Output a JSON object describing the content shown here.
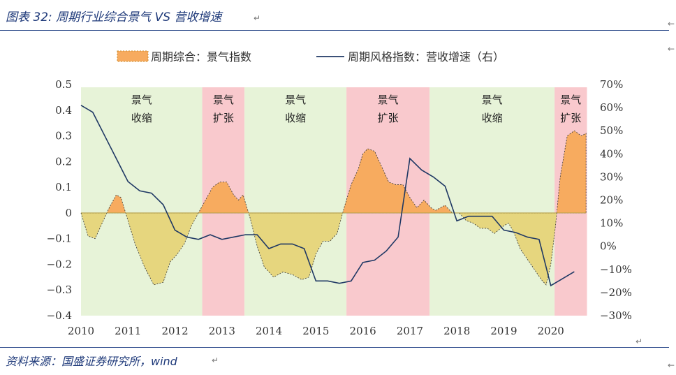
{
  "header": {
    "title": "图表 32: 周期行业综合景气 VS 营收增速",
    "return_mark": "↵"
  },
  "footer": {
    "source": "资料来源：国盛证券研究所，wind",
    "return_mark": "↵"
  },
  "edge_marks": [
    "←",
    "←",
    "←",
    "↵"
  ],
  "colors": {
    "area_neg": "#e6d67e",
    "area_pos": "#f7ab5f",
    "line": "#1f3864",
    "shade_green": "#e7f3d8",
    "shade_red": "#f9c9cd",
    "rule": "#2e4c8c"
  },
  "chart_data": {
    "type": "area+line",
    "legend": [
      "周期综合：景气指数",
      "周期风格指数：营收增速（右）"
    ],
    "x_ticks": [
      "2010",
      "2011",
      "2012",
      "2013",
      "2014",
      "2015",
      "2016",
      "2017",
      "2018",
      "2019",
      "2020"
    ],
    "x_range": [
      2010.0,
      2021.0
    ],
    "y_left": {
      "ticks": [
        "0.5",
        "0.4",
        "0.3",
        "0.2",
        "0.1",
        "0",
        "−0.1",
        "−0.2",
        "−0.3",
        "−0.4"
      ],
      "range": [
        -0.4,
        0.5
      ]
    },
    "y_right": {
      "ticks": [
        "70%",
        "60%",
        "50%",
        "40%",
        "30%",
        "20%",
        "10%",
        "0%",
        "−10%",
        "−20%",
        "−30%"
      ],
      "range": [
        -30,
        70
      ]
    },
    "regimes": [
      {
        "start": 2010.0,
        "end": 2012.58,
        "label1": "景气",
        "label2": "收缩",
        "kind": "contraction"
      },
      {
        "start": 2012.58,
        "end": 2013.48,
        "label1": "景气",
        "label2": "扩张",
        "kind": "expansion"
      },
      {
        "start": 2013.48,
        "end": 2015.65,
        "label1": "景气",
        "label2": "收缩",
        "kind": "contraction"
      },
      {
        "start": 2015.65,
        "end": 2017.42,
        "label1": "景气",
        "label2": "扩张",
        "kind": "expansion"
      },
      {
        "start": 2017.42,
        "end": 2020.08,
        "label1": "景气",
        "label2": "收缩",
        "kind": "contraction"
      },
      {
        "start": 2020.08,
        "end": 2020.77,
        "label1": "景气",
        "label2": "扩张",
        "kind": "expansion"
      }
    ],
    "series_area": {
      "name": "周期综合：景气指数",
      "x": [
        2010.0,
        2010.15,
        2010.3,
        2010.45,
        2010.6,
        2010.75,
        2010.85,
        2011.0,
        2011.15,
        2011.35,
        2011.55,
        2011.75,
        2011.9,
        2012.05,
        2012.2,
        2012.35,
        2012.5,
        2012.65,
        2012.8,
        2012.95,
        2013.1,
        2013.25,
        2013.35,
        2013.45,
        2013.6,
        2013.75,
        2013.9,
        2014.1,
        2014.3,
        2014.5,
        2014.7,
        2014.85,
        2015.0,
        2015.15,
        2015.3,
        2015.45,
        2015.6,
        2015.75,
        2015.9,
        2016.0,
        2016.1,
        2016.25,
        2016.4,
        2016.55,
        2016.7,
        2016.85,
        2017.0,
        2017.15,
        2017.3,
        2017.45,
        2017.55,
        2017.65,
        2017.75,
        2017.9,
        2018.05,
        2018.2,
        2018.35,
        2018.5,
        2018.65,
        2018.8,
        2019.0,
        2019.1,
        2019.2,
        2019.35,
        2019.5,
        2019.65,
        2019.8,
        2019.9,
        2020.0,
        2020.1,
        2020.2,
        2020.35,
        2020.5,
        2020.65,
        2020.75
      ],
      "values": [
        0.0,
        -0.09,
        -0.1,
        -0.04,
        0.02,
        0.07,
        0.06,
        -0.03,
        -0.12,
        -0.21,
        -0.28,
        -0.27,
        -0.19,
        -0.16,
        -0.12,
        -0.05,
        0.0,
        0.05,
        0.1,
        0.12,
        0.12,
        0.07,
        0.05,
        0.07,
        -0.02,
        -0.13,
        -0.21,
        -0.25,
        -0.23,
        -0.24,
        -0.26,
        -0.25,
        -0.16,
        -0.11,
        -0.11,
        -0.08,
        0.02,
        0.11,
        0.17,
        0.23,
        0.25,
        0.24,
        0.18,
        0.12,
        0.11,
        0.11,
        0.06,
        0.02,
        0.05,
        0.02,
        0.01,
        0.02,
        0.03,
        0.0,
        0.0,
        -0.03,
        -0.04,
        -0.06,
        -0.06,
        -0.08,
        -0.05,
        -0.04,
        -0.07,
        -0.14,
        -0.18,
        -0.22,
        -0.26,
        -0.28,
        -0.2,
        -0.05,
        0.14,
        0.3,
        0.32,
        0.3,
        0.31
      ]
    },
    "series_line": {
      "name": "周期风格指数：营收增速（右）",
      "x": [
        2010.0,
        2010.25,
        2010.5,
        2010.75,
        2011.0,
        2011.25,
        2011.5,
        2011.75,
        2012.0,
        2012.25,
        2012.5,
        2012.75,
        2013.0,
        2013.25,
        2013.5,
        2013.75,
        2014.0,
        2014.25,
        2014.5,
        2014.75,
        2015.0,
        2015.25,
        2015.5,
        2015.75,
        2016.0,
        2016.25,
        2016.5,
        2016.75,
        2017.0,
        2017.25,
        2017.5,
        2017.75,
        2018.0,
        2018.25,
        2018.5,
        2018.75,
        2019.0,
        2019.25,
        2019.5,
        2019.75,
        2020.0,
        2020.25,
        2020.5
      ],
      "values": [
        61,
        58,
        48,
        38,
        28,
        24,
        23,
        18,
        7,
        4,
        3,
        5,
        3,
        4,
        5,
        5,
        -1,
        1,
        1,
        -1,
        -15,
        -15,
        -16,
        -15,
        -7,
        -6,
        -2,
        4,
        38,
        33,
        30,
        26,
        11,
        13,
        13,
        13,
        7,
        6,
        4,
        3,
        -17,
        -14,
        -11
      ]
    }
  }
}
